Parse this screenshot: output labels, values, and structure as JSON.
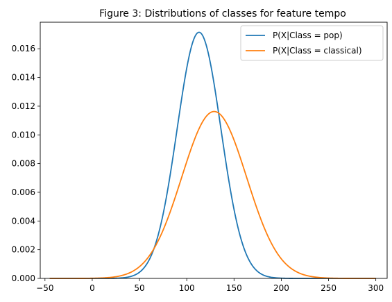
{
  "chart_data": {
    "type": "line",
    "title": "Figure 3: Distributions of classes for feature tempo",
    "xlabel": "",
    "ylabel": "",
    "xlim": [
      -55,
      312
    ],
    "ylim": [
      0,
      0.01785
    ],
    "xticks": [
      -50,
      0,
      50,
      100,
      150,
      200,
      250,
      300
    ],
    "xtick_labels": [
      "−50",
      "0",
      "50",
      "100",
      "150",
      "200",
      "250",
      "300"
    ],
    "yticks": [
      0,
      0.002,
      0.004,
      0.006,
      0.008,
      0.01,
      0.012,
      0.014,
      0.016
    ],
    "ytick_labels": [
      "0.000",
      "0.002",
      "0.004",
      "0.006",
      "0.008",
      "0.010",
      "0.012",
      "0.014",
      "0.016"
    ],
    "grid": false,
    "legend_position": "top-right",
    "x_range": [
      -45,
      300
    ],
    "series": [
      {
        "name": "P(X|Class = pop)",
        "color": "#1f77b4",
        "distribution": "normal",
        "mean": 113,
        "std": 23.2,
        "peak": 0.01715
      },
      {
        "name": "P(X|Class = classical)",
        "color": "#ff7f0e",
        "distribution": "normal",
        "mean": 129,
        "std": 34.3,
        "peak": 0.01163
      }
    ]
  }
}
